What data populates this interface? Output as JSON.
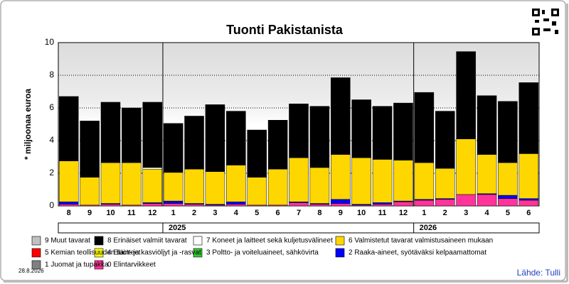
{
  "chart_data": {
    "type": "stacked-bar",
    "title": "Tuonti Pakistanista",
    "y_label": "* miljoonaa euroa",
    "categories": [
      "8",
      "9",
      "10",
      "11",
      "12",
      "1",
      "2",
      "3",
      "4",
      "5",
      "6",
      "7",
      "8",
      "9",
      "10",
      "11",
      "12",
      "1",
      "2",
      "3",
      "4",
      "5",
      "6"
    ],
    "year_labels": [
      null,
      "2025",
      "2026"
    ],
    "ylim": [
      0,
      10
    ],
    "yticks": [
      0,
      2,
      4,
      6,
      8,
      10
    ],
    "grid": true,
    "series": [
      {
        "name": "0 Elintarvikkeet",
        "color": "#ff3399",
        "values": [
          0.1,
          0.05,
          0.1,
          0.05,
          0.15,
          0.15,
          0.1,
          0.05,
          0.1,
          0.05,
          0.05,
          0.2,
          0.1,
          0.15,
          0.05,
          0.1,
          0.25,
          0.35,
          0.4,
          0.7,
          0.7,
          0.45,
          0.35
        ]
      },
      {
        "name": "1 Juomat ja tupakka",
        "color": "#808080",
        "values": [
          0,
          0,
          0,
          0,
          0,
          0,
          0,
          0,
          0,
          0,
          0,
          0,
          0,
          0,
          0,
          0,
          0,
          0,
          0,
          0,
          0,
          0,
          0
        ]
      },
      {
        "name": "2 Raaka-aineet, syötäväksi kelpaamattomat",
        "color": "#0000ff",
        "values": [
          0.15,
          0,
          0.05,
          0,
          0.05,
          0.15,
          0.05,
          0.05,
          0.15,
          0,
          0,
          0.05,
          0.05,
          0.25,
          0.05,
          0.1,
          0.05,
          0.05,
          0.05,
          0,
          0.05,
          0.2,
          0.1
        ]
      },
      {
        "name": "3 Poltto- ja voiteluaineet, sähkövirta",
        "color": "#33cc33",
        "values": [
          0,
          0,
          0,
          0,
          0,
          0,
          0,
          0,
          0,
          0,
          0,
          0,
          0,
          0,
          0,
          0,
          0,
          0,
          0,
          0,
          0,
          0,
          0
        ]
      },
      {
        "name": "4 Eläin- ja kasviöljyt ja -rasvat",
        "color": "#ffff00",
        "values": [
          0,
          0,
          0,
          0,
          0,
          0,
          0,
          0,
          0,
          0,
          0,
          0,
          0,
          0,
          0,
          0,
          0,
          0,
          0,
          0,
          0,
          0,
          0
        ]
      },
      {
        "name": "5 Kemian teollisuuden tuotteet",
        "color": "#ff0000",
        "values": [
          0,
          0,
          0,
          0,
          0,
          0,
          0,
          0,
          0,
          0,
          0,
          0,
          0,
          0,
          0,
          0,
          0,
          0,
          0,
          0,
          0,
          0,
          0
        ]
      },
      {
        "name": "6 Valmistetut tavarat valmistusaineen mukaan",
        "color": "#ffd700",
        "values": [
          2.5,
          1.7,
          2.5,
          2.6,
          2.05,
          1.75,
          2.1,
          2.0,
          2.25,
          1.7,
          2.2,
          2.7,
          2.2,
          2.75,
          2.85,
          2.65,
          2.5,
          2.25,
          1.85,
          3.4,
          2.4,
          2.0,
          2.75
        ]
      },
      {
        "name": "7 Koneet ja laitteet sekä kuljetusvälineet",
        "color": "#ffffff",
        "values": [
          0,
          0,
          0,
          0,
          0.1,
          0,
          0,
          0,
          0,
          0,
          0,
          0,
          0,
          0,
          0,
          0,
          0,
          0,
          0,
          0,
          0,
          0,
          0
        ]
      },
      {
        "name": "8 Erinäiset valmiit tavarat",
        "color": "#000000",
        "values": [
          3.95,
          3.45,
          3.7,
          3.35,
          4.0,
          3.0,
          3.25,
          4.1,
          3.3,
          2.9,
          3.0,
          3.3,
          3.75,
          4.7,
          3.55,
          3.25,
          3.5,
          4.3,
          3.5,
          5.35,
          3.6,
          3.75,
          4.35
        ]
      },
      {
        "name": "9 Muut tavarat",
        "color": "#c0c0c0",
        "values": [
          0,
          0,
          0,
          0,
          0,
          0,
          0,
          0,
          0,
          0,
          0,
          0,
          0,
          0,
          0,
          0,
          0,
          0,
          0,
          0,
          0,
          0,
          0
        ]
      }
    ]
  },
  "date": "28.8.2026",
  "source": "Lähde: Tulli"
}
